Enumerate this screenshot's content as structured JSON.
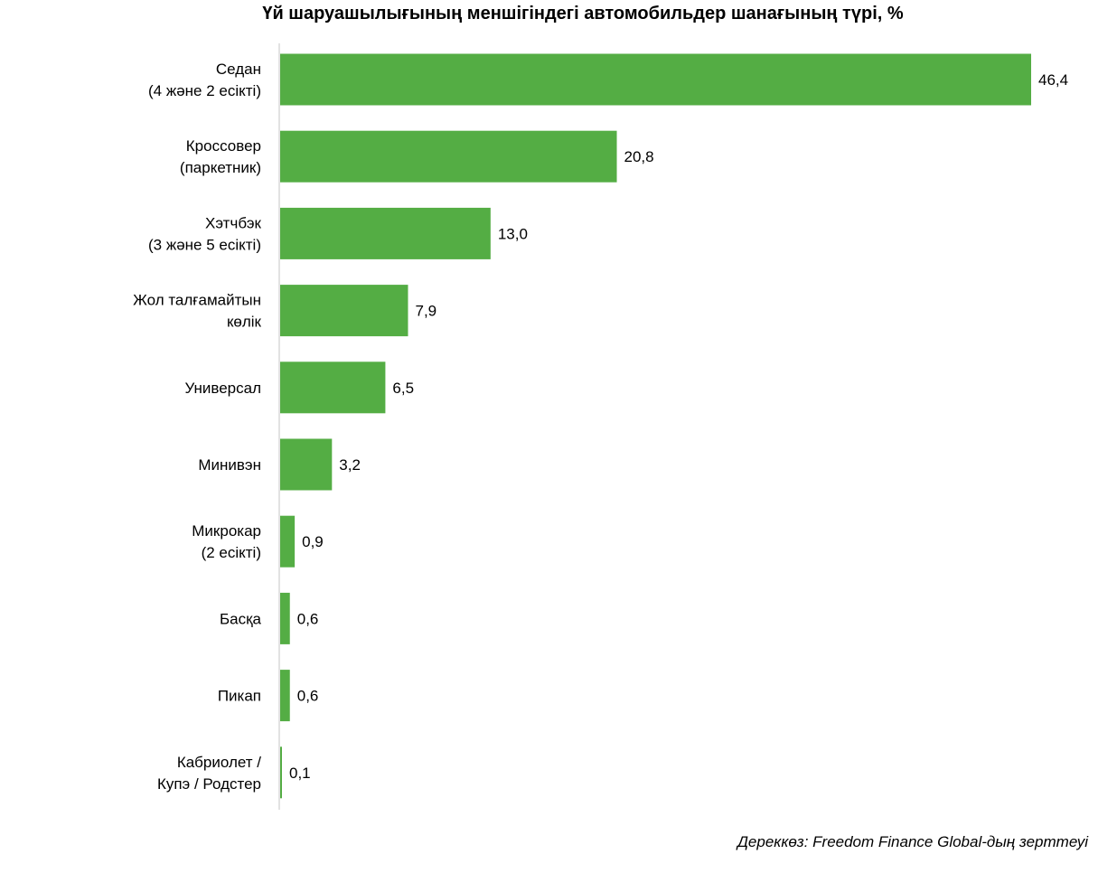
{
  "chart_data": {
    "type": "bar",
    "orientation": "horizontal",
    "title": "Үй шаруашылығының меншігіндегі автомобильдер шанағының түрі, %",
    "categories": [
      [
        "Седан",
        "(4 және 2 есікті)"
      ],
      [
        "Кроссовер",
        "(паркетник)"
      ],
      [
        "Хэтчбэк",
        "(3 және 5 есікті)"
      ],
      [
        "Жол талғамайтын",
        "көлік"
      ],
      [
        "Универсал"
      ],
      [
        "Минивэн"
      ],
      [
        "Микрокар",
        "(2 есікті)"
      ],
      [
        "Басқа"
      ],
      [
        "Пикап"
      ],
      [
        "Кабриолет /",
        "Купэ / Родстер"
      ]
    ],
    "values": [
      46.4,
      20.8,
      13.0,
      7.9,
      6.5,
      3.2,
      0.9,
      0.6,
      0.6,
      0.1
    ],
    "value_labels": [
      "46,4",
      "20,8",
      "13,0",
      "7,9",
      "6,5",
      "3,2",
      "0,9",
      "0,6",
      "0,6",
      "0,1"
    ],
    "xlim": [
      0,
      46.4
    ],
    "bar_color": "#54ad44",
    "axis_color": "#d9d9d9",
    "grid": false,
    "legend": "none"
  },
  "source": "Дереккөз: Freedom Finance Global-дың зерттеуі"
}
